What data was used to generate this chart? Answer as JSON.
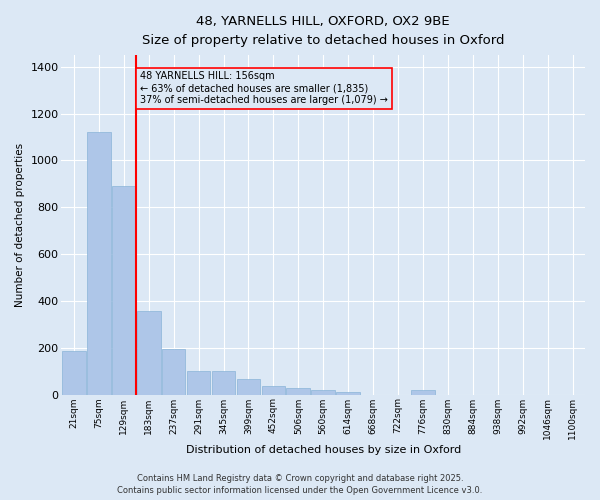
{
  "title_line1": "48, YARNELLS HILL, OXFORD, OX2 9BE",
  "title_line2": "Size of property relative to detached houses in Oxford",
  "xlabel": "Distribution of detached houses by size in Oxford",
  "ylabel": "Number of detached properties",
  "categories": [
    "21sqm",
    "75sqm",
    "129sqm",
    "183sqm",
    "237sqm",
    "291sqm",
    "345sqm",
    "399sqm",
    "452sqm",
    "506sqm",
    "560sqm",
    "614sqm",
    "668sqm",
    "722sqm",
    "776sqm",
    "830sqm",
    "884sqm",
    "938sqm",
    "992sqm",
    "1046sqm",
    "1100sqm"
  ],
  "values": [
    185,
    1120,
    890,
    355,
    195,
    100,
    100,
    65,
    35,
    30,
    20,
    10,
    0,
    0,
    20,
    0,
    0,
    0,
    0,
    0,
    0
  ],
  "bar_color": "#aec6e8",
  "bar_edge_color": "#8ab4d8",
  "vline_color": "red",
  "annotation_text": "48 YARNELLS HILL: 156sqm\n← 63% of detached houses are smaller (1,835)\n37% of semi-detached houses are larger (1,079) →",
  "annotation_box_color": "red",
  "footer_line1": "Contains HM Land Registry data © Crown copyright and database right 2025.",
  "footer_line2": "Contains public sector information licensed under the Open Government Licence v3.0.",
  "ylim": [
    0,
    1450
  ],
  "background_color": "#dce8f5",
  "grid_color": "#ffffff"
}
